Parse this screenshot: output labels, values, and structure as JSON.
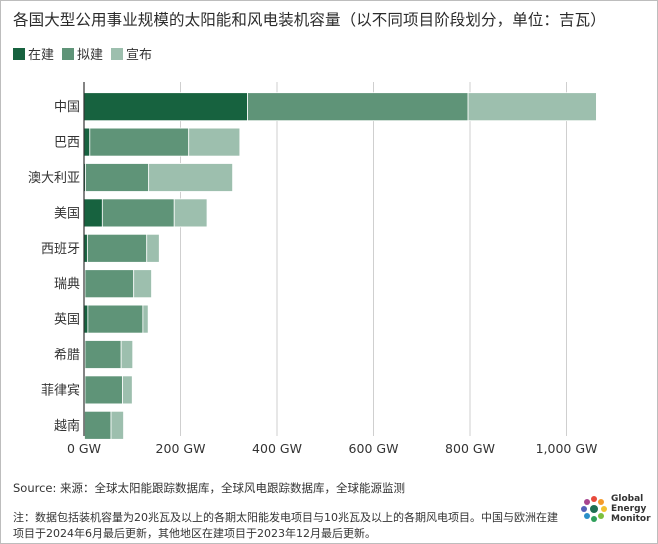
{
  "title": "各国大型公用事业规模的太阳能和风电装机容量（以不同项目阶段划分，单位：吉瓦）",
  "legend": [
    {
      "label": "在建",
      "color": "#17623f"
    },
    {
      "label": "拟建",
      "color": "#5f9478"
    },
    {
      "label": "宣布",
      "color": "#9dbfae"
    }
  ],
  "chart_data": {
    "type": "bar",
    "orientation": "horizontal",
    "stacked": true,
    "title": "各国大型公用事业规模的太阳能和风电装机容量（以不同项目阶段划分，单位：吉瓦）",
    "categories": [
      "中国",
      "巴西",
      "澳大利亚",
      "美国",
      "西班牙",
      "瑞典",
      "英国",
      "希腊",
      "菲律宾",
      "越南"
    ],
    "series": [
      {
        "name": "在建",
        "color": "#17623f",
        "values": [
          339,
          12,
          3,
          38,
          7,
          2,
          8,
          2,
          2,
          1
        ]
      },
      {
        "name": "拟建",
        "color": "#5f9478",
        "values": [
          457,
          205,
          131,
          149,
          123,
          101,
          114,
          75,
          78,
          55
        ]
      },
      {
        "name": "宣布",
        "color": "#9dbfae",
        "values": [
          266,
          106,
          174,
          68,
          26,
          37,
          11,
          24,
          20,
          26
        ]
      }
    ],
    "x_ticks": [
      "0 GW",
      "200 GW",
      "400 GW",
      "600 GW",
      "800 GW",
      "1,000 GW"
    ],
    "x_tick_values": [
      0,
      200,
      400,
      600,
      800,
      1000
    ],
    "xlim": [
      0,
      1090
    ],
    "grid": "vertical",
    "legend_position": "top-left"
  },
  "source": "Source: 来源：全球太阳能跟踪数据库，全球风电跟踪数据库，全球能源监测",
  "note_lines": [
    "注：数据包括装机容量为20兆瓦及以上的各期太阳能发电项目与10兆瓦及以上的各期风电项目。中国与欧洲在建",
    "项目于2024年6月最后更新，其他地区在建项目于2023年12月最后更新。"
  ],
  "brand": {
    "line1": "Global",
    "line2": "Energy",
    "line3": "Monitor"
  }
}
